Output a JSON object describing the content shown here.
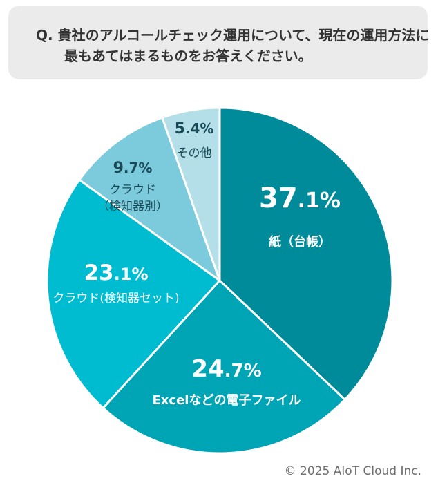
{
  "question": {
    "prefix": "Q.",
    "line1": "貴社のアルコールチェック運用について、現在の運用方法に",
    "line2": "最もあてはまるものをお答えください。"
  },
  "chart_data": {
    "type": "pie",
    "title": "貴社のアルコールチェック運用について、現在の運用方法に最もあてはまるものをお答えください。",
    "unit": "%",
    "start_angle_deg": 0,
    "direction": "clockwise",
    "slices": [
      {
        "label": "紙（台帳）",
        "value": 37.1,
        "display_int": "37",
        "display_dec": ".1%",
        "color": "#008b9a",
        "text_color": "#ffffff",
        "label_lines": [
          "紙（台帳）"
        ]
      },
      {
        "label": "Excelなどの電子ファイル",
        "value": 24.7,
        "display_int": "24",
        "display_dec": ".7%",
        "color": "#00a5b5",
        "text_color": "#ffffff",
        "label_lines": [
          "Excelなどの電子ファイル"
        ]
      },
      {
        "label": "クラウド(検知器セット)",
        "value": 23.1,
        "display_int": "23",
        "display_dec": ".1%",
        "color": "#00bcd0",
        "text_color": "#ffffff",
        "label_lines": [
          "クラウド(検知器セット)"
        ]
      },
      {
        "label": "クラウド（検知器別）",
        "value": 9.7,
        "display_int": "9",
        "display_dec": ".7%",
        "color": "#7ccbdd",
        "text_color": "#1a4a57",
        "label_lines": [
          "クラウド",
          "（検知器別）"
        ]
      },
      {
        "label": "その他",
        "value": 5.4,
        "display_int": "5",
        "display_dec": ".4%",
        "color": "#b4dfe8",
        "text_color": "#1a4a57",
        "label_lines": [
          "その他"
        ]
      }
    ]
  },
  "footer": {
    "copyright": "© 2025 AIoT Cloud Inc."
  }
}
